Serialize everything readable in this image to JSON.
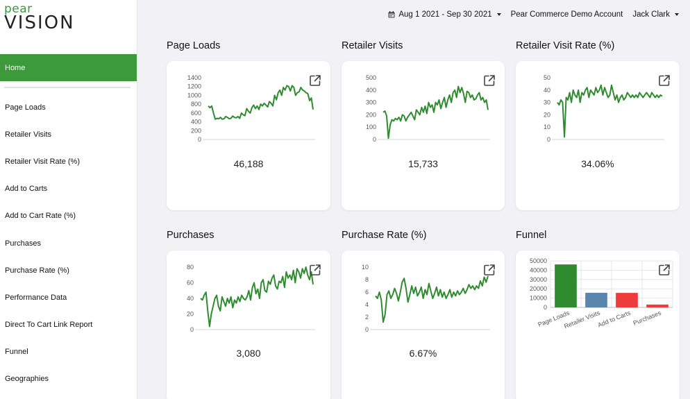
{
  "logo": {
    "line1": "pear",
    "line2": "VISION"
  },
  "nav": {
    "home": "Home",
    "items": [
      "Page Loads",
      "Retailer Visits",
      "Retailer Visit Rate (%)",
      "Add to Carts",
      "Add to Cart Rate (%)",
      "Purchases",
      "Purchase Rate (%)",
      "Performance Data",
      "Direct To Cart Link Report",
      "Funnel",
      "Geographies"
    ]
  },
  "topbar": {
    "date_range": "Aug 1 2021 - Sep 30 2021",
    "account": "Pear Commerce Demo Account",
    "user": "Jack Clark"
  },
  "colors": {
    "accent": "#3d9a3b",
    "line": "#2e8b2e"
  },
  "cards": [
    {
      "title": "Page Loads",
      "value": "46,188"
    },
    {
      "title": "Retailer Visits",
      "value": "15,733"
    },
    {
      "title": "Retailer Visit Rate (%)",
      "value": "34.06%"
    },
    {
      "title": "Purchases",
      "value": "3,080"
    },
    {
      "title": "Purchase Rate (%)",
      "value": "6.67%"
    },
    {
      "title": "Funnel"
    }
  ],
  "chart_data": [
    {
      "type": "line",
      "name": "page_loads",
      "ylim": [
        0,
        1400
      ],
      "yticks": [
        0,
        200,
        400,
        600,
        800,
        1000,
        1200,
        1400
      ],
      "values": [
        760,
        720,
        760,
        600,
        460,
        480,
        470,
        500,
        460,
        470,
        520,
        500,
        470,
        480,
        530,
        500,
        490,
        520,
        480,
        600,
        560,
        540,
        700,
        640,
        600,
        720,
        780,
        700,
        760,
        680,
        800,
        760,
        820,
        780,
        740,
        860,
        820,
        760,
        1000,
        900,
        1060,
        1120,
        1000,
        1180,
        1120,
        1220,
        1200,
        1100,
        1220,
        1180,
        1000,
        1060,
        1080,
        1180,
        1120,
        1100,
        1060,
        1040,
        880,
        940,
        680
      ]
    },
    {
      "type": "line",
      "name": "retailer_visits",
      "ylim": [
        0,
        500
      ],
      "yticks": [
        0,
        100,
        200,
        300,
        400,
        500
      ],
      "values": [
        220,
        230,
        190,
        10,
        120,
        160,
        150,
        170,
        160,
        180,
        150,
        200,
        190,
        150,
        180,
        200,
        220,
        190,
        160,
        240,
        220,
        200,
        260,
        220,
        270,
        210,
        300,
        260,
        280,
        220,
        300,
        280,
        320,
        250,
        300,
        340,
        260,
        320,
        360,
        300,
        380,
        400,
        340,
        430,
        380,
        420,
        370,
        300,
        390,
        380,
        340,
        360,
        320,
        330,
        360,
        380,
        320,
        340,
        300,
        320,
        240
      ]
    },
    {
      "type": "line",
      "name": "retailer_visit_rate",
      "ylim": [
        0,
        50
      ],
      "yticks": [
        0,
        10,
        20,
        30,
        40,
        50
      ],
      "values": [
        30,
        28,
        32,
        30,
        2,
        34,
        32,
        38,
        30,
        40,
        36,
        34,
        40,
        30,
        38,
        36,
        40,
        42,
        34,
        40,
        38,
        36,
        42,
        38,
        40,
        44,
        36,
        42,
        38,
        34,
        36,
        44,
        38,
        32,
        36,
        30,
        34,
        36,
        32,
        34,
        38,
        36,
        34,
        36,
        34,
        36,
        34,
        38,
        36,
        34,
        36,
        38,
        36,
        34,
        38,
        36,
        34,
        36,
        34,
        36,
        35
      ]
    },
    {
      "type": "line",
      "name": "purchases",
      "ylim": [
        0,
        80
      ],
      "yticks": [
        0,
        20,
        40,
        60,
        80
      ],
      "values": [
        40,
        38,
        44,
        48,
        24,
        4,
        20,
        30,
        40,
        44,
        30,
        24,
        42,
        36,
        30,
        40,
        34,
        42,
        28,
        38,
        34,
        42,
        36,
        44,
        40,
        38,
        42,
        50,
        38,
        54,
        60,
        46,
        52,
        40,
        60,
        64,
        50,
        48,
        62,
        58,
        66,
        70,
        56,
        52,
        62,
        60,
        68,
        54,
        74,
        66,
        70,
        64,
        76,
        60,
        78,
        74,
        66,
        78,
        72,
        80,
        70,
        64,
        74,
        58
      ]
    },
    {
      "type": "line",
      "name": "purchase_rate",
      "ylim": [
        0,
        10
      ],
      "yticks": [
        0,
        2,
        4,
        6,
        8,
        10
      ],
      "values": [
        5.4,
        5,
        6,
        4.8,
        1.2,
        2.4,
        5.6,
        6.2,
        5,
        5.6,
        6.6,
        5.8,
        4.6,
        6,
        7.6,
        8.2,
        6.6,
        4.4,
        5.6,
        7,
        5.8,
        6.8,
        5.4,
        6,
        6.8,
        5,
        6.4,
        5.6,
        7.4,
        6.2,
        5,
        5.8,
        6.8,
        5.4,
        6.4,
        5.2,
        6,
        5,
        5.6,
        6.4,
        5.2,
        6,
        5.4,
        6.2,
        5.6,
        6,
        6.6,
        5.8,
        6.4,
        7.2,
        6.6,
        7,
        6.4,
        7,
        6.6,
        7.8,
        7,
        8.4,
        7.6,
        8.6
      ]
    },
    {
      "type": "bar",
      "name": "funnel",
      "categories": [
        "Page Loads",
        "Retailer Visits",
        "Add to Carts",
        "Purchases"
      ],
      "values": [
        46188,
        15733,
        15600,
        3080
      ],
      "colors": [
        "#2e8b2e",
        "#5b86ac",
        "#ee3b3b",
        "#ee3b3b"
      ],
      "ylim": [
        0,
        50000
      ],
      "yticks": [
        0,
        10000,
        20000,
        30000,
        40000,
        50000
      ]
    }
  ]
}
